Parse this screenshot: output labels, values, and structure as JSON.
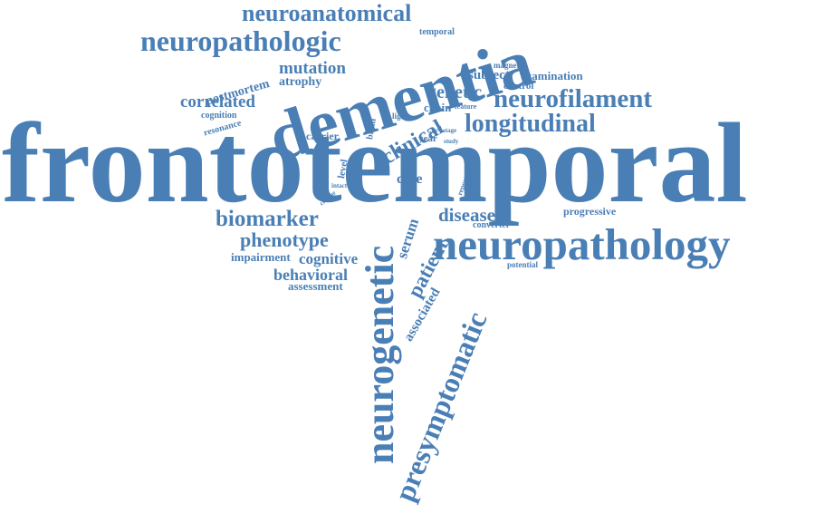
{
  "word_cloud": {
    "color": "#4a7fb5",
    "words": [
      {
        "key": "frontotemporal",
        "text": "frontotemporal"
      },
      {
        "key": "dementia",
        "text": "dementia"
      },
      {
        "key": "neuropathology",
        "text": "neuropathology"
      },
      {
        "key": "neurogenetic",
        "text": "neurogenetic"
      },
      {
        "key": "presymptomatic",
        "text": "presymptomatic"
      },
      {
        "key": "neuropathologic",
        "text": "neuropathologic"
      },
      {
        "key": "neuroanatomical",
        "text": "neuroanatomical"
      },
      {
        "key": "neurofilament",
        "text": "neurofilament"
      },
      {
        "key": "longitudinal",
        "text": "longitudinal"
      },
      {
        "key": "clinical",
        "text": "clinical"
      },
      {
        "key": "biomarker",
        "text": "biomarker"
      },
      {
        "key": "phenotype",
        "text": "phenotype"
      },
      {
        "key": "patient",
        "text": "patient"
      },
      {
        "key": "mutation",
        "text": "mutation"
      },
      {
        "key": "genetic",
        "text": "genetic"
      },
      {
        "key": "disease",
        "text": "disease"
      },
      {
        "key": "correlated",
        "text": "correlated"
      },
      {
        "key": "behavioral",
        "text": "behavioral"
      },
      {
        "key": "cognitive",
        "text": "cognitive"
      },
      {
        "key": "serum",
        "text": "serum"
      },
      {
        "key": "associated",
        "text": "associated"
      },
      {
        "key": "postmortem",
        "text": "postmortem"
      },
      {
        "key": "subject",
        "text": "subject"
      },
      {
        "key": "examination",
        "text": "examination"
      },
      {
        "key": "case",
        "text": "case"
      },
      {
        "key": "atrophy",
        "text": "atrophy"
      },
      {
        "key": "impairment",
        "text": "impairment"
      },
      {
        "key": "assessment",
        "text": "assessment"
      },
      {
        "key": "progressive",
        "text": "progressive"
      },
      {
        "key": "chain",
        "text": "chain"
      },
      {
        "key": "carrier",
        "text": "carrier"
      },
      {
        "key": "year",
        "text": "year"
      },
      {
        "key": "resonance",
        "text": "resonance"
      },
      {
        "key": "cognition",
        "text": "cognition"
      },
      {
        "key": "magnetic",
        "text": "magnetic"
      },
      {
        "key": "control",
        "text": "control"
      },
      {
        "key": "temporal",
        "text": "temporal"
      },
      {
        "key": "level",
        "text": "level"
      },
      {
        "key": "brain",
        "text": "brain"
      },
      {
        "key": "light",
        "text": "light"
      },
      {
        "key": "converter",
        "text": "converter"
      },
      {
        "key": "potential",
        "text": "potential"
      },
      {
        "key": "feature",
        "text": "feature"
      },
      {
        "key": "report",
        "text": "report"
      },
      {
        "key": "change",
        "text": "change"
      },
      {
        "key": "intact",
        "text": "intact"
      },
      {
        "key": "novel",
        "text": "novel"
      },
      {
        "key": "stage",
        "text": "stage"
      },
      {
        "key": "study",
        "text": "study"
      }
    ]
  }
}
